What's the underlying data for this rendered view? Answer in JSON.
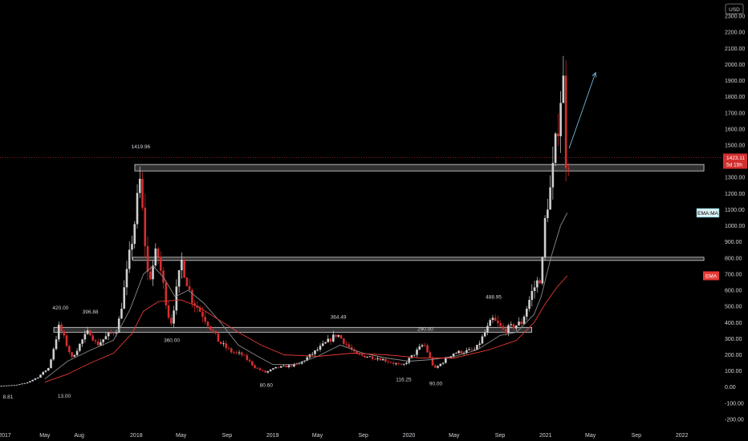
{
  "chart_data": {
    "type": "candlestick",
    "currency": "USD",
    "ylim": [
      -250,
      2400
    ],
    "y_ticks": [
      -200,
      -100,
      0,
      100,
      200,
      300,
      400,
      500,
      600,
      700,
      800,
      900,
      1000,
      1100,
      1200,
      1300,
      1400,
      1500,
      1600,
      1700,
      1800,
      1900,
      2000,
      2100,
      2200,
      2300
    ],
    "y_tick_labels": [
      "-200.00",
      "-100.00",
      "0.00",
      "100.00",
      "200.00",
      "300.00",
      "400.00",
      "500.00",
      "600.00",
      "700.00",
      "800.00",
      "900.00",
      "1000.00",
      "1100.00",
      "1200.00",
      "1300.00",
      "1400.00",
      "1500.00",
      "1600.00",
      "1700.00",
      "1800.00",
      "1900.00",
      "2000.00",
      "2100.00",
      "2200.00",
      "2300.00"
    ],
    "x_ticks": [
      {
        "label": "2017",
        "date": "2017-01-01"
      },
      {
        "label": "May",
        "date": "2017-05-01"
      },
      {
        "label": "Aug",
        "date": "2017-08-01"
      },
      {
        "label": "2018",
        "date": "2018-01-01"
      },
      {
        "label": "May",
        "date": "2018-05-01"
      },
      {
        "label": "Sep",
        "date": "2018-09-01"
      },
      {
        "label": "2019",
        "date": "2019-01-01"
      },
      {
        "label": "May",
        "date": "2019-05-01"
      },
      {
        "label": "Sep",
        "date": "2019-09-01"
      },
      {
        "label": "2020",
        "date": "2020-01-01"
      },
      {
        "label": "May",
        "date": "2020-05-01"
      },
      {
        "label": "Sep",
        "date": "2020-09-01"
      },
      {
        "label": "2021",
        "date": "2021-01-01"
      },
      {
        "label": "May",
        "date": "2021-05-01"
      },
      {
        "label": "Sep",
        "date": "2021-09-01"
      },
      {
        "label": "2022",
        "date": "2022-01-01"
      }
    ],
    "xlim": [
      "2017-01-01",
      "2022-04-15"
    ],
    "price_path": [
      [
        "2017-01-01",
        8
      ],
      [
        "2017-02-15",
        12
      ],
      [
        "2017-03-15",
        25
      ],
      [
        "2017-04-15",
        60
      ],
      [
        "2017-05-15",
        120
      ],
      [
        "2017-06-12",
        380
      ],
      [
        "2017-07-16",
        180
      ],
      [
        "2017-08-15",
        300
      ],
      [
        "2017-09-01",
        350
      ],
      [
        "2017-09-20",
        260
      ],
      [
        "2017-10-15",
        310
      ],
      [
        "2017-11-15",
        360
      ],
      [
        "2017-12-10",
        700
      ],
      [
        "2018-01-05",
        1100
      ],
      [
        "2018-01-13",
        1300
      ],
      [
        "2018-02-06",
        650
      ],
      [
        "2018-03-01",
        850
      ],
      [
        "2018-04-06",
        380
      ],
      [
        "2018-05-06",
        780
      ],
      [
        "2018-06-01",
        550
      ],
      [
        "2018-07-01",
        450
      ],
      [
        "2018-08-14",
        280
      ],
      [
        "2018-09-15",
        220
      ],
      [
        "2018-10-15",
        200
      ],
      [
        "2018-11-20",
        120
      ],
      [
        "2018-12-15",
        90
      ],
      [
        "2019-01-15",
        120
      ],
      [
        "2019-03-15",
        140
      ],
      [
        "2019-05-15",
        250
      ],
      [
        "2019-06-26",
        330
      ],
      [
        "2019-08-15",
        200
      ],
      [
        "2019-10-15",
        180
      ],
      [
        "2019-12-18",
        130
      ],
      [
        "2020-02-14",
        270
      ],
      [
        "2020-03-13",
        110
      ],
      [
        "2020-05-01",
        210
      ],
      [
        "2020-07-01",
        230
      ],
      [
        "2020-08-15",
        420
      ],
      [
        "2020-09-15",
        350
      ],
      [
        "2020-11-01",
        400
      ],
      [
        "2020-12-01",
        600
      ],
      [
        "2020-12-25",
        700
      ],
      [
        "2021-01-05",
        1100
      ],
      [
        "2021-01-20",
        1250
      ],
      [
        "2021-02-05",
        1600
      ],
      [
        "2021-02-20",
        1950
      ],
      [
        "2021-02-28",
        1423
      ]
    ],
    "ema_short": [
      [
        "2017-05-01",
        50
      ],
      [
        "2017-07-01",
        160
      ],
      [
        "2017-09-01",
        230
      ],
      [
        "2017-11-01",
        290
      ],
      [
        "2017-12-15",
        480
      ],
      [
        "2018-01-20",
        700
      ],
      [
        "2018-02-15",
        750
      ],
      [
        "2018-03-15",
        680
      ],
      [
        "2018-04-15",
        560
      ],
      [
        "2018-05-20",
        600
      ],
      [
        "2018-07-01",
        520
      ],
      [
        "2018-08-15",
        400
      ],
      [
        "2018-10-01",
        260
      ],
      [
        "2018-11-15",
        200
      ],
      [
        "2019-01-01",
        140
      ],
      [
        "2019-03-01",
        140
      ],
      [
        "2019-05-01",
        190
      ],
      [
        "2019-07-01",
        260
      ],
      [
        "2019-09-01",
        210
      ],
      [
        "2019-11-01",
        180
      ],
      [
        "2020-01-01",
        160
      ],
      [
        "2020-03-01",
        170
      ],
      [
        "2020-05-01",
        190
      ],
      [
        "2020-07-01",
        230
      ],
      [
        "2020-09-01",
        320
      ],
      [
        "2020-10-15",
        340
      ],
      [
        "2020-12-01",
        450
      ],
      [
        "2020-12-20",
        560
      ],
      [
        "2021-01-15",
        800
      ],
      [
        "2021-02-10",
        1000
      ],
      [
        "2021-02-28",
        1080
      ]
    ],
    "ema_long": [
      [
        "2017-05-01",
        30
      ],
      [
        "2017-07-01",
        80
      ],
      [
        "2017-09-01",
        150
      ],
      [
        "2017-11-01",
        210
      ],
      [
        "2017-12-20",
        330
      ],
      [
        "2018-01-20",
        470
      ],
      [
        "2018-03-01",
        530
      ],
      [
        "2018-05-01",
        540
      ],
      [
        "2018-06-15",
        500
      ],
      [
        "2018-08-01",
        430
      ],
      [
        "2018-10-01",
        340
      ],
      [
        "2018-12-01",
        260
      ],
      [
        "2019-02-01",
        200
      ],
      [
        "2019-05-01",
        190
      ],
      [
        "2019-08-01",
        210
      ],
      [
        "2019-11-01",
        200
      ],
      [
        "2020-02-01",
        180
      ],
      [
        "2020-05-01",
        180
      ],
      [
        "2020-08-01",
        230
      ],
      [
        "2020-10-15",
        290
      ],
      [
        "2020-12-01",
        400
      ],
      [
        "2021-01-01",
        520
      ],
      [
        "2021-02-01",
        620
      ],
      [
        "2021-02-28",
        690
      ]
    ],
    "zones": [
      {
        "from": 1340,
        "to": 1380,
        "start": "2017-12-28",
        "end": "2022-03-01"
      },
      {
        "from": 785,
        "to": 805,
        "start": "2017-12-22",
        "end": "2022-03-01"
      },
      {
        "from": 340,
        "to": 370,
        "start": "2017-05-25",
        "end": "2020-11-25"
      }
    ],
    "projection": {
      "start": [
        "2021-03-05",
        1480
      ],
      "end": [
        "2021-05-15",
        1950
      ]
    },
    "annotations": [
      {
        "text": "420.00",
        "date": "2017-06-12",
        "value": 420,
        "pos": "above"
      },
      {
        "text": "396.88",
        "date": "2017-08-31",
        "value": 396.88,
        "pos": "above"
      },
      {
        "text": "13.00",
        "date": "2017-06-22",
        "value": 13,
        "pos": "below"
      },
      {
        "text": "1419.96",
        "date": "2018-01-13",
        "value": 1419.96,
        "pos": "above"
      },
      {
        "text": "360.00",
        "date": "2018-04-06",
        "value": 360,
        "pos": "below"
      },
      {
        "text": "80.60",
        "date": "2018-12-15",
        "value": 80.6,
        "pos": "below"
      },
      {
        "text": "364.49",
        "date": "2019-06-26",
        "value": 364.49,
        "pos": "above"
      },
      {
        "text": "290.00",
        "date": "2020-02-14",
        "value": 290,
        "pos": "above"
      },
      {
        "text": "116.25",
        "date": "2019-12-18",
        "value": 116.25,
        "pos": "below"
      },
      {
        "text": "90.00",
        "date": "2020-03-13",
        "value": 90,
        "pos": "below"
      },
      {
        "text": "488.95",
        "date": "2020-08-15",
        "value": 488.95,
        "pos": "above"
      },
      {
        "text": "8.81",
        "date": "2017-01-01",
        "value": 8.81,
        "pos": "below"
      }
    ],
    "last_price": {
      "value": 1423.11,
      "label": "1423.11",
      "countdown": "5d 15h"
    },
    "indicator_tags": [
      {
        "label": "EMA:MA",
        "value": 1080
      },
      {
        "label": "EMA",
        "value": 690
      }
    ]
  },
  "colors": {
    "background": "#000000",
    "up_candle": "#cfcfcf",
    "down_candle": "#d32f2f",
    "ema_short_line": "#8a8a8a",
    "ema_long_line": "#e53935",
    "zone_fill": "#5a5a5a",
    "zone_stroke": "#d8d8d8",
    "projection_arrow": "#6fb7d6",
    "price_tag_bg": "#d32f2f",
    "ema_ma_tag_bg": "#dff3f6",
    "ema_tag_bg": "#e53935"
  }
}
